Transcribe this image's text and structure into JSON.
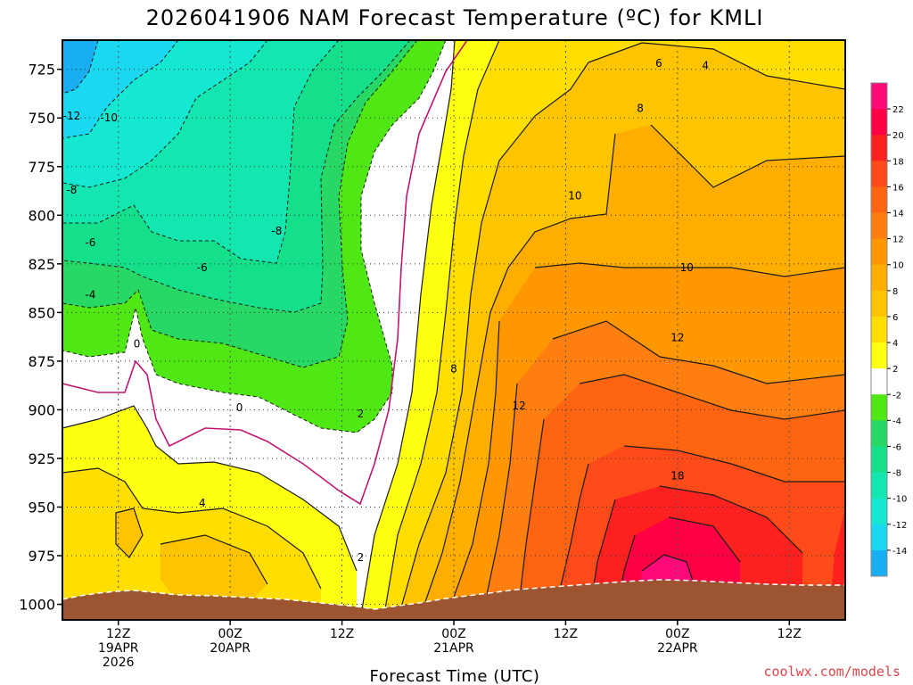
{
  "title": "2026041906 NAM Forecast Temperature (ºC) for KMLI",
  "credit": "coolwx.com/models",
  "colors": {
    "ground": "#9c5530",
    "contour": "#1a1a1a",
    "zero_line": "#c0166f"
  },
  "chart_data": {
    "type": "heatmap",
    "title": "2026041906 NAM Forecast Temperature (ºC) for KMLI",
    "xlabel": "Forecast Time (UTC)",
    "ylabel": "",
    "y_scale": "pressure (hPa), inverted",
    "ylim": [
      710,
      1008
    ],
    "y_ticks": [
      725,
      750,
      775,
      800,
      825,
      850,
      875,
      900,
      925,
      950,
      975,
      1000
    ],
    "y_tick_labels": [
      "725",
      "750",
      "775",
      "800",
      "825",
      "850",
      "875",
      "900",
      "925",
      "950",
      "975",
      "1000"
    ],
    "xlim": [
      "2026-04-19 06Z",
      "2026-04-22 18Z"
    ],
    "x_ticks": [
      {
        "time": "2026-04-19 12Z",
        "lines": [
          "12Z",
          "19APR",
          "2026"
        ]
      },
      {
        "time": "2026-04-20 00Z",
        "lines": [
          "00Z",
          "20APR"
        ]
      },
      {
        "time": "2026-04-20 12Z",
        "lines": [
          "12Z"
        ]
      },
      {
        "time": "2026-04-21 00Z",
        "lines": [
          "00Z",
          "21APR"
        ]
      },
      {
        "time": "2026-04-21 12Z",
        "lines": [
          "12Z"
        ]
      },
      {
        "time": "2026-04-22 00Z",
        "lines": [
          "00Z",
          "22APR"
        ]
      },
      {
        "time": "2026-04-22 12Z",
        "lines": [
          "12Z"
        ]
      }
    ],
    "grid": true,
    "colorbar": {
      "placement": "right",
      "levels": [
        -16,
        -14,
        -12,
        -10,
        -8,
        -6,
        -4,
        -2,
        2,
        4,
        6,
        8,
        10,
        12,
        14,
        16,
        18,
        20,
        22,
        24
      ],
      "tick_labels": [
        "22",
        "20",
        "18",
        "16",
        "14",
        "12",
        "10",
        "8",
        "6",
        "4",
        "2",
        "-2",
        "-4",
        "-6",
        "-8",
        "-10",
        "-12",
        "-14"
      ],
      "colors": [
        "#19aef2",
        "#19d8f0",
        "#14e8d0",
        "#14e6b0",
        "#14e08c",
        "#28d864",
        "#50e814",
        "#ffffff",
        "#ffff10",
        "#ffde00",
        "#ffc400",
        "#ffae00",
        "#ff9800",
        "#ff7e10",
        "#ff6410",
        "#ff4a1a",
        "#ff2020",
        "#ff0044",
        "#ff0a78"
      ]
    },
    "contour_labels": [
      {
        "value": "-12",
        "time": "2026-04-19 07Z",
        "p": 749
      },
      {
        "value": "-10",
        "time": "2026-04-19 11Z",
        "p": 750
      },
      {
        "value": "-8",
        "time": "2026-04-19 07Z",
        "p": 787
      },
      {
        "value": "-8",
        "time": "2026-04-20 05Z",
        "p": 808
      },
      {
        "value": "-6",
        "time": "2026-04-19 09Z",
        "p": 814
      },
      {
        "value": "-6",
        "time": "2026-04-19 21Z",
        "p": 827
      },
      {
        "value": "-4",
        "time": "2026-04-19 09Z",
        "p": 841
      },
      {
        "value": "0",
        "time": "2026-04-19 14Z",
        "p": 866
      },
      {
        "value": "0",
        "time": "2026-04-20 01Z",
        "p": 899
      },
      {
        "value": "2",
        "time": "2026-04-20 14Z",
        "p": 902
      },
      {
        "value": "2",
        "time": "2026-04-20 14Z",
        "p": 976
      },
      {
        "value": "4",
        "time": "2026-04-19 21Z",
        "p": 948
      },
      {
        "value": "8",
        "time": "2026-04-21 00Z",
        "p": 879
      },
      {
        "value": "12",
        "time": "2026-04-21 07Z",
        "p": 898
      },
      {
        "value": "18",
        "time": "2026-04-21 24Z",
        "p": 934
      },
      {
        "value": "12",
        "time": "2026-04-21 24Z",
        "p": 863
      },
      {
        "value": "10",
        "time": "2026-04-22 01Z",
        "p": 827
      },
      {
        "value": "10",
        "time": "2026-04-21 13Z",
        "p": 790
      },
      {
        "value": "8",
        "time": "2026-04-21 20Z",
        "p": 745
      },
      {
        "value": "6",
        "time": "2026-04-21 22Z",
        "p": 722
      },
      {
        "value": "4",
        "time": "2026-04-22 03Z",
        "p": 723
      }
    ]
  }
}
